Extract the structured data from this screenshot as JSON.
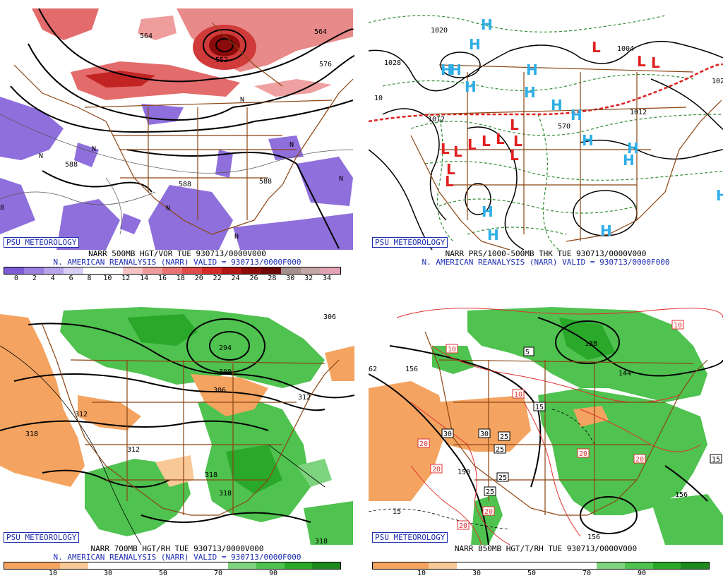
{
  "panels": [
    {
      "brand": "PSU METEOROLOGY",
      "title1": "NARR 500MB HGT/VOR TUE 930713/0000V000",
      "title2": "N. AMERICAN REANALYSIS (NARR) VALID = 930713/0000F000",
      "contour_labels": [
        "564",
        "552",
        "576",
        "564",
        "588",
        "588",
        "588",
        "8",
        "N",
        "N",
        "N",
        "N",
        "N",
        "N",
        "N"
      ],
      "colorbar": {
        "colors": [
          "#7e5bd6",
          "#9b80e0",
          "#b9a5ea",
          "#d9cdf4",
          "#ffffff",
          "#ffffff",
          "#f7c4c4",
          "#ef9c9c",
          "#e87474",
          "#e04b4b",
          "#d42a2a",
          "#b31515",
          "#8b0a0a",
          "#6e0808",
          "#a88f8f",
          "#c4a6a6",
          "#e2a3b4"
        ],
        "ticks": [
          "0",
          "2",
          "4",
          "6",
          "8",
          "10",
          "12",
          "14",
          "16",
          "18",
          "20",
          "22",
          "24",
          "26",
          "28",
          "30",
          "32",
          "34"
        ]
      }
    },
    {
      "brand": "PSU METEOROLOGY",
      "title1": "NARR PRS/1000-500MB THK TUE 930713/0000V000",
      "title2": "N. AMERICAN REANALYSIS (NARR) VALID = 930713/0000F000",
      "contour_labels": [
        "1028",
        "1020",
        "1004",
        "1012",
        "1012",
        "570",
        "10",
        "102"
      ],
      "h_marks": [
        "H",
        "H",
        "H",
        "H",
        "H",
        "H",
        "H",
        "H",
        "H",
        "H",
        "H",
        "H",
        "H",
        "H",
        "H",
        "H"
      ],
      "l_marks": [
        "L",
        "L",
        "L",
        "L",
        "L",
        "L",
        "L",
        "L",
        "L",
        "L",
        "L",
        "L",
        "L"
      ]
    },
    {
      "brand": "PSU METEOROLOGY",
      "title1": "NARR 700MB HGT/RH TUE 930713/0000V000",
      "title2": "N. AMERICAN REANALYSIS (NARR) VALID = 930713/0000F000",
      "contour_labels": [
        "306",
        "294",
        "300",
        "306",
        "312",
        "312",
        "318",
        "312",
        "318",
        "318",
        "318"
      ],
      "colorbar": {
        "colors": [
          "#f4a460",
          "#f4a460",
          "#f8c896",
          "#ffffff",
          "#ffffff",
          "#ffffff",
          "#ffffff",
          "#ffffff",
          "#7ed37e",
          "#4fc24f",
          "#2aa82a",
          "#1e8a1e"
        ],
        "ticks": [
          "10",
          "30",
          "50",
          "70",
          "90"
        ]
      }
    },
    {
      "brand": "PSU METEOROLOGY",
      "title1": "NARR 850MB HGT/T/RH TUE 930713/0000V000",
      "contour_labels": [
        "62",
        "156",
        "138",
        "144",
        "150",
        "156",
        "156",
        "15",
        "5",
        "15",
        "25",
        "25",
        "25",
        "25",
        "10",
        "10",
        "10",
        "20",
        "20",
        "20",
        "20",
        "20",
        "20",
        "30",
        "30",
        "15"
      ],
      "colorbar": {
        "colors": [
          "#f4a460",
          "#f4a460",
          "#f8c896",
          "#ffffff",
          "#ffffff",
          "#ffffff",
          "#ffffff",
          "#ffffff",
          "#7ed37e",
          "#4fc24f",
          "#2aa82a",
          "#1e8a1e"
        ],
        "ticks": [
          "10",
          "30",
          "50",
          "70",
          "90"
        ]
      }
    }
  ]
}
